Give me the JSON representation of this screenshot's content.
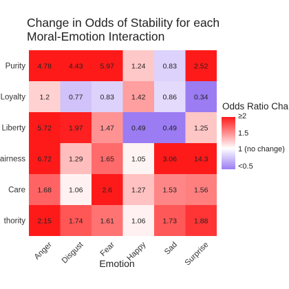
{
  "chart_data": {
    "type": "heatmap",
    "title_lines": [
      "Change in Odds of Stability for each",
      "Moral-Emotion Interaction"
    ],
    "xlabel": "Emotion",
    "ylabel": "",
    "x_categories": [
      "Anger",
      "Disgust",
      "Fear",
      "Happy",
      "Sad",
      "Surprise"
    ],
    "y_categories": [
      "Purity",
      "Loyalty",
      "Liberty",
      "Fairness",
      "Care",
      "Authority"
    ],
    "y_tick_labels_visible": [
      "Purity",
      "Loyalty",
      "Liberty",
      "airness",
      "Care",
      "thority"
    ],
    "values": [
      [
        4.78,
        4.43,
        5.97,
        1.24,
        0.83,
        2.52
      ],
      [
        1.2,
        0.77,
        0.83,
        1.42,
        0.86,
        0.34
      ],
      [
        5.72,
        1.97,
        1.47,
        0.49,
        0.49,
        1.25
      ],
      [
        6.72,
        1.29,
        1.65,
        1.05,
        3.06,
        14.3
      ],
      [
        1.68,
        1.06,
        2.6,
        1.27,
        1.53,
        1.56
      ],
      [
        2.15,
        1.74,
        1.61,
        1.06,
        1.73,
        1.88
      ]
    ],
    "cell_labels": [
      [
        "4.78",
        "4.43",
        "5.97",
        "1.24",
        "0.83",
        "2.52"
      ],
      [
        "1.2",
        "0.77",
        "0.83",
        "1.42",
        "0.86",
        "0.34"
      ],
      [
        "5.72",
        "1.97",
        "1.47",
        "0.49",
        "0.49",
        "1.25"
      ],
      [
        "6.72",
        "1.29",
        "1.65",
        "1.05",
        "3.06",
        "14.3"
      ],
      [
        "1.68",
        "1.06",
        "2.6",
        "1.27",
        "1.53",
        "1.56"
      ],
      [
        "2.15",
        "1.74",
        "1.61",
        "1.06",
        "1.73",
        "1.88"
      ]
    ],
    "color_scale": {
      "low_color": "#9b7cf3",
      "mid_color": "#ffffff",
      "high_color": "#ff1a1a",
      "low_value": 0.5,
      "mid_value": 1,
      "high_value": 2
    },
    "legend": {
      "title": "Odds Ratio Cha",
      "labels": [
        "≥2",
        "1.5",
        "1 (no change)",
        "<0.5"
      ],
      "placement": "right"
    }
  }
}
